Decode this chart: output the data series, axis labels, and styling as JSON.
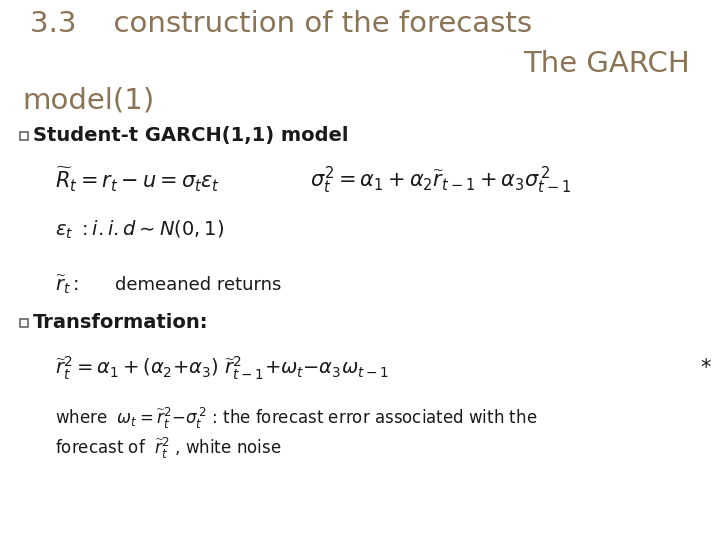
{
  "bg_color": "#ffffff",
  "title_line1": "3.3    construction of the forecasts",
  "title_line2": "The GARCH",
  "title_line3": "model(1)",
  "title_color": "#8B7355",
  "title_fontsize": 21,
  "header_bar_color": "#9EBDD0",
  "header_accent_color": "#C97038",
  "bullet1_label": "Student-t GARCH(1,1) model",
  "eq1a": "$\\widetilde{R}_t = r_t - u = \\sigma_t \\varepsilon_t$",
  "eq1b": "$\\sigma_t^2 = \\alpha_1 + \\alpha_2 \\widetilde{r}_{t-1} + \\alpha_3 \\sigma_{t-1}^{\\,2}$",
  "eq2": "$\\varepsilon_t\\ {:}i.i.d{\\sim}N(0,1)$",
  "eq3": "$\\widetilde{r}_t{:}$",
  "eq3_text": "demeaned returns",
  "bullet2_label": "Transformation:",
  "eq4": "$\\widetilde{r}_t^2{=}\\alpha_1 + (\\alpha_2{+}\\alpha_3)\\ \\widetilde{r}_{t-1}^2{+}\\omega_t{-}\\alpha_3\\omega_{t-1}$",
  "star": "*",
  "eq5a": "where  $\\omega_t = \\widetilde{r}_t^2{-}\\sigma_t^{\\,2}$ : the forecast error associated with the",
  "eq5b": "forecast of  $\\widetilde{r}_t^2$ , white noise",
  "text_color": "#1a1a1a",
  "body_fontsize": 13,
  "eq_fontsize": 14,
  "small_fontsize": 12
}
